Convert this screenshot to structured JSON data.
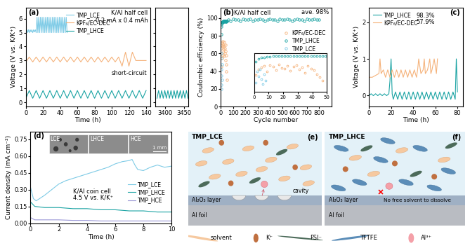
{
  "chart_data": [
    {
      "panel": "(a)",
      "type": "line",
      "xlabel": "Time (h)",
      "ylabel": "Voltage (V vs. K/K⁺)",
      "annotations": [
        "K/Al half cell",
        "0.2 mA x 0.4 mAh",
        "short-circuit"
      ],
      "xlim": [
        0,
        145
      ],
      "xticks": [
        0,
        20,
        40,
        60,
        80,
        100,
        120,
        140
      ],
      "ylim": [
        -0.3,
        6.8
      ],
      "yticks": [
        0,
        1,
        2,
        3,
        4,
        5,
        6
      ],
      "legend": "upper center",
      "series": [
        {
          "name": "TMP_LCE",
          "color": "#7ecbe6",
          "x": [
            0,
            1,
            2,
            3,
            4,
            5,
            6,
            7,
            8,
            9,
            10,
            11,
            12,
            13,
            14,
            15,
            16,
            17,
            18,
            19,
            20,
            21,
            22,
            23,
            24,
            25,
            26,
            27,
            28,
            29,
            30,
            31,
            32,
            33,
            34,
            35,
            36,
            37,
            38,
            39,
            40,
            41,
            42,
            43,
            44,
            45,
            46,
            47,
            48
          ],
          "values": [
            5.05,
            5.2,
            5.0,
            5.2,
            5.0,
            5.2,
            5.05,
            5.2,
            5.0,
            5.2,
            5.05,
            5.2,
            5.0,
            6.1,
            5.0,
            6.1,
            5.0,
            6.1,
            5.0,
            6.1,
            5.0,
            6.1,
            5.0,
            6.1,
            5.0,
            6.1,
            5.0,
            6.1,
            5.0,
            6.1,
            5.0,
            6.1,
            5.0,
            6.1,
            5.0,
            6.1,
            5.0,
            6.1,
            5.0,
            6.1,
            5.0,
            6.1,
            5.0,
            6.1,
            5.0,
            6.1,
            5.0,
            6.1,
            5.0
          ]
        },
        {
          "name": "KPF₆/EC-DEC",
          "color": "#f5b27a",
          "x": [
            0,
            4,
            8,
            12,
            16,
            20,
            24,
            28,
            32,
            36,
            40,
            44,
            48,
            52,
            56,
            60,
            64,
            68,
            72,
            76,
            80,
            84,
            88,
            92,
            96,
            100,
            104,
            108,
            112,
            116,
            120,
            124,
            128,
            132,
            136,
            140
          ],
          "values": [
            2.9,
            3.25,
            2.9,
            3.25,
            2.9,
            3.25,
            2.9,
            3.25,
            2.9,
            3.25,
            2.9,
            3.25,
            2.9,
            3.25,
            2.9,
            3.25,
            2.9,
            3.25,
            2.9,
            3.25,
            2.9,
            3.25,
            2.9,
            3.25,
            2.9,
            3.25,
            2.9,
            3.25,
            2.6,
            3.6,
            2.6,
            3.6,
            3.0,
            3.0,
            3.0,
            3.0
          ]
        },
        {
          "name": "TMP_LHCE",
          "color": "#1aa3a3",
          "x": [
            0,
            4,
            8,
            12,
            16,
            20,
            24,
            28,
            32,
            36,
            40,
            44,
            48,
            52,
            56,
            60,
            64,
            68,
            72,
            76,
            80,
            84,
            88,
            92,
            96,
            100,
            104,
            108,
            112,
            116,
            120,
            124,
            128,
            132,
            136,
            140
          ],
          "values": [
            0.3,
            0.85,
            0.3,
            0.85,
            0.3,
            0.85,
            0.3,
            0.85,
            0.3,
            0.85,
            0.3,
            0.85,
            0.3,
            0.85,
            0.3,
            0.85,
            0.3,
            0.85,
            0.3,
            0.85,
            0.3,
            0.85,
            0.3,
            0.85,
            0.3,
            0.85,
            0.3,
            0.85,
            0.3,
            0.85,
            0.3,
            0.85,
            0.3,
            0.85,
            0.3,
            0.85
          ]
        }
      ]
    },
    {
      "type": "line",
      "tick_labels": "x",
      "xlim": [
        3375,
        3460
      ],
      "xticks": [
        3400,
        3450
      ],
      "ylim": [
        -0.3,
        6.8
      ],
      "yticks": [
        0,
        1,
        2,
        3,
        4,
        5,
        6
      ],
      "series": [
        {
          "name": "TMP_LHCE",
          "color": "#1aa3a3",
          "x": [
            3380,
            3384,
            3388,
            3392,
            3396,
            3400,
            3404,
            3408,
            3412,
            3416,
            3420,
            3424,
            3428,
            3432,
            3436,
            3440,
            3444,
            3448,
            3452,
            3456,
            3460
          ],
          "values": [
            0.3,
            0.85,
            0.3,
            0.85,
            0.3,
            0.85,
            0.3,
            0.85,
            0.3,
            0.85,
            0.3,
            0.85,
            0.3,
            0.85,
            0.3,
            0.85,
            0.3,
            0.85,
            0.3,
            0.85,
            0.3
          ]
        }
      ]
    },
    {
      "panel": "(b)",
      "type": "scatter",
      "xlabel": "Cycle number",
      "ylabel": "Coulombic efficiency (%)",
      "annotations": [
        "K/Al half cell",
        "ave. 98%"
      ],
      "xlim": [
        0,
        900
      ],
      "xticks": [
        0,
        100,
        200,
        300,
        400,
        500,
        600,
        700,
        800
      ],
      "ylim": [
        0,
        112
      ],
      "yticks": [
        0,
        20,
        40,
        60,
        80,
        100
      ],
      "legend": "upper right",
      "series": [
        {
          "name": "KPF₆/EC-DEC",
          "color": "#f5b27a",
          "marker": "o",
          "line_style": "none",
          "x": [
            1,
            3,
            5,
            7,
            9,
            11,
            13,
            15,
            17,
            19,
            21,
            23,
            25,
            27,
            29,
            31,
            33,
            35,
            37,
            39,
            41,
            43,
            45,
            47
          ],
          "values": [
            45,
            60,
            66,
            70,
            55,
            72,
            68,
            58,
            74,
            65,
            62,
            70,
            57,
            68,
            73,
            60,
            66,
            52,
            70,
            63,
            58,
            48,
            40,
            30
          ]
        },
        {
          "name": "TMP_LHCE",
          "color": "#1aa3a3",
          "marker": "o",
          "line_style": "none",
          "x": [
            1,
            3,
            5,
            7,
            9,
            11,
            13,
            15,
            17,
            19,
            21,
            23,
            25,
            27,
            29,
            31,
            33,
            35,
            37,
            39,
            41,
            43,
            45,
            47,
            49,
            60,
            80,
            100,
            120,
            140,
            160,
            180,
            200,
            220,
            240,
            260,
            280,
            300,
            320,
            340,
            360,
            380,
            400,
            420,
            440,
            460,
            480,
            500,
            520,
            540,
            560,
            580,
            600,
            620,
            640,
            660,
            680,
            700,
            720,
            740,
            760,
            780,
            800
          ],
          "values": [
            82,
            90,
            93,
            94,
            95,
            95,
            96,
            96,
            96,
            97,
            96,
            97,
            97,
            96,
            97,
            97,
            97,
            96,
            97,
            97,
            97,
            97,
            96,
            97,
            97,
            98,
            97,
            99,
            98,
            98,
            97,
            99,
            98,
            98,
            99,
            97,
            98,
            98,
            99,
            98,
            97,
            98,
            99,
            98,
            98,
            97,
            99,
            98,
            98,
            99,
            98,
            97,
            98,
            99,
            98,
            98,
            97,
            99,
            98,
            98,
            99,
            98,
            98
          ]
        },
        {
          "name": "TMP_LCE",
          "color": "#7ecbe6",
          "marker": "o",
          "line_style": "none",
          "x": [
            1,
            2,
            3,
            4,
            5,
            6,
            7,
            8
          ],
          "values": [
            25,
            55,
            42,
            60,
            35,
            20,
            48,
            30
          ]
        }
      ],
      "inset": {
        "xlim": [
          0,
          50
        ],
        "xticks": [
          0,
          10,
          20,
          30,
          40,
          50
        ],
        "ylim": [
          0,
          105
        ],
        "tick_labels": "x"
      }
    },
    {
      "panel": "(c)",
      "type": "line",
      "xlabel": "Time (h)",
      "ylabel": "Voltage (V vs. K/K⁺)",
      "annotations": [
        "98.3%",
        "57.9%"
      ],
      "xlim": [
        0,
        85
      ],
      "xticks": [
        0,
        20,
        40,
        60,
        80
      ],
      "ylim": [
        -0.3,
        2.4
      ],
      "yticks": [
        0,
        1,
        2
      ],
      "legend": "upper left",
      "series": [
        {
          "name": "TMP_LHCE",
          "color": "#1aa3a3",
          "x": [
            0,
            2,
            4,
            6,
            8,
            10,
            12,
            14,
            16,
            18,
            19,
            20,
            21,
            22,
            24,
            26,
            28,
            30,
            32,
            34,
            36,
            38,
            40,
            42,
            44,
            46,
            48,
            50,
            52,
            54,
            56,
            58,
            60,
            62,
            64,
            66,
            68,
            70,
            72,
            74,
            76,
            78,
            79,
            80
          ],
          "values": [
            0.0,
            0.05,
            0.0,
            0.05,
            0.0,
            0.05,
            0.0,
            0.05,
            0.0,
            0.05,
            0.4,
            1.0,
            0.05,
            -0.1,
            0.1,
            -0.1,
            0.1,
            -0.1,
            0.1,
            -0.1,
            0.1,
            -0.1,
            0.1,
            -0.1,
            0.1,
            -0.1,
            0.1,
            -0.1,
            0.1,
            -0.1,
            0.1,
            -0.1,
            0.1,
            -0.1,
            0.1,
            -0.1,
            0.1,
            -0.1,
            0.1,
            -0.1,
            0.1,
            -0.1,
            1.0,
            0.1
          ]
        },
        {
          "name": "KPF₆/EC-DEC",
          "color": "#f5b27a",
          "x": [
            0,
            3,
            6,
            9,
            10,
            11,
            13,
            15,
            17,
            19,
            21,
            23,
            25,
            27,
            29,
            31,
            33,
            35,
            37,
            39,
            41,
            43,
            44,
            45,
            47,
            49,
            50,
            51,
            53,
            55,
            56,
            57,
            59,
            61,
            62
          ],
          "values": [
            0.5,
            0.5,
            0.55,
            0.6,
            1.0,
            0.6,
            0.7,
            0.5,
            0.7,
            0.5,
            0.7,
            0.5,
            0.7,
            0.5,
            0.7,
            0.5,
            0.7,
            0.5,
            0.7,
            0.5,
            0.7,
            0.5,
            0.7,
            1.0,
            0.6,
            0.7,
            1.0,
            0.6,
            0.7,
            1.0,
            0.6,
            0.7,
            1.0,
            0.6,
            1.0
          ]
        }
      ]
    },
    {
      "panel": "(d)",
      "type": "line",
      "xlabel": "Time (h)",
      "ylabel": "Current density (mA cm⁻²)",
      "annotations": [
        "K/Al coin cell",
        "4.5 V vs. K/K⁺",
        "1 mm"
      ],
      "images": [
        "LCE",
        "LHCE",
        "HCE"
      ],
      "xlim": [
        0,
        10
      ],
      "xticks": [
        0,
        2,
        4,
        6,
        8,
        10
      ],
      "ylim": [
        0,
        0.82
      ],
      "yticks": [
        {
          "value": 0,
          "label": "0.00"
        },
        {
          "value": 0.15,
          "label": "0.15"
        },
        {
          "value": 0.3,
          "label": "0.30"
        },
        {
          "value": 0.45,
          "label": "0.45"
        },
        {
          "value": 0.6,
          "label": "0.60"
        },
        {
          "value": 0.75,
          "label": "0.75"
        }
      ],
      "legend": "lower right",
      "series": [
        {
          "name": "TMP_LCE",
          "color": "#7ecbe6",
          "x": [
            0,
            0.2,
            0.4,
            1,
            1.5,
            2,
            2.5,
            3,
            3.5,
            4,
            4.5,
            5,
            5.5,
            6,
            6.5,
            7,
            7.2,
            7.4,
            7.6,
            8,
            8.5,
            9,
            9.5,
            10
          ],
          "values": [
            0.32,
            0.22,
            0.2,
            0.25,
            0.3,
            0.35,
            0.38,
            0.4,
            0.42,
            0.44,
            0.46,
            0.48,
            0.5,
            0.53,
            0.55,
            0.56,
            0.57,
            0.52,
            0.48,
            0.47,
            0.5,
            0.52,
            0.5,
            0.51
          ]
        },
        {
          "name": "TMP_LHCE",
          "color": "#1aa3a3",
          "x": [
            0,
            0.3,
            1,
            2,
            3,
            4,
            5,
            6,
            7,
            8,
            9,
            10
          ],
          "values": [
            0.19,
            0.15,
            0.14,
            0.14,
            0.13,
            0.13,
            0.12,
            0.12,
            0.11,
            0.11,
            0.1,
            0.1
          ]
        },
        {
          "name": "TMP_HCE",
          "color": "#9a97d6",
          "x": [
            0,
            0.3,
            1,
            2,
            3,
            4,
            5,
            6,
            7,
            8,
            9,
            10
          ],
          "values": [
            0.05,
            0.03,
            0.03,
            0.03,
            0.025,
            0.025,
            0.02,
            0.02,
            0.02,
            0.02,
            0.02,
            0.02
          ]
        }
      ]
    }
  ],
  "diagrams": [
    {
      "panel": "(e)",
      "title": "TMP_LCE",
      "layers": [
        "Al₂O₃ layer",
        "Al foil"
      ],
      "note": "cavity"
    },
    {
      "panel": "(f)",
      "title": "TMP_LHCE",
      "layers": [
        "Al₂O₃ layer",
        "Al foil"
      ],
      "note": "No free solvent to dissolve"
    }
  ],
  "diagram_legend": [
    "solvent",
    "K⁺",
    "FSI⁻",
    "TFTFE",
    "Al³⁺"
  ]
}
